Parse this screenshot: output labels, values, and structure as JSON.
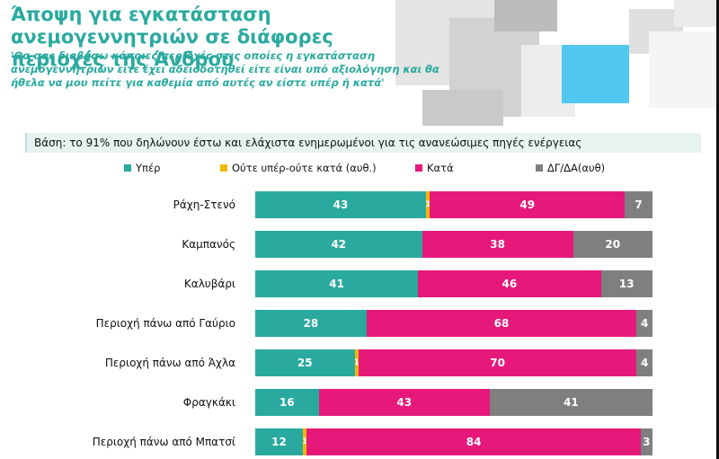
{
  "header": {
    "title": "Άποψη για εγκατάσταση ανεμογεννητριών σε διάφορες περιοχές της Άνδρου",
    "subtitle": "'Θα σας διαβάσω κάποιες περιοχές στις οποίες η εγκατάσταση ανεμογεννητριών είτε έχει αδειοδοτηθεί είτε είναι υπό αξιολόγηση και θα ήθελα να μου πείτε για καθεμία από αυτές αν είστε υπέρ ή κατά'"
  },
  "base_note": "Βάση: το 91% που δηλώνουν έστω και ελάχιστα ενημερωμένοι για τις ανανεώσιμες πηγές ενέργειας",
  "colors": {
    "yper": "#2aaa9f",
    "neutral": "#f2b70b",
    "kata": "#e6197a",
    "dk": "#7f7f7f"
  },
  "chart_data": {
    "type": "bar",
    "orientation": "horizontal",
    "stacked": true,
    "percent": true,
    "categories": [
      "Ράχη-Στενό",
      "Καμπανός",
      "Καλυβάρι",
      "Περιοχή πάνω από Γαύριο",
      "Περιοχή πάνω από Άχλα",
      "Φραγκάκι",
      "Περιοχή πάνω από Μπατσί"
    ],
    "series": [
      {
        "name": "Υπέρ",
        "color": "#2aaa9f",
        "values": [
          43,
          42,
          41,
          28,
          25,
          16,
          12
        ]
      },
      {
        "name": "Ούτε υπέρ-ούτε κατά (αυθ.)",
        "color": "#f2b70b",
        "values": [
          1,
          0,
          0,
          0,
          1,
          0,
          1
        ]
      },
      {
        "name": "Κατά",
        "color": "#e6197a",
        "values": [
          49,
          38,
          46,
          68,
          70,
          43,
          84
        ]
      },
      {
        "name": "ΔΓ/ΔΑ(αυθ)",
        "color": "#7f7f7f",
        "values": [
          7,
          20,
          13,
          4,
          4,
          41,
          3
        ]
      }
    ],
    "xlim": [
      0,
      100
    ],
    "legend_position": "top"
  }
}
